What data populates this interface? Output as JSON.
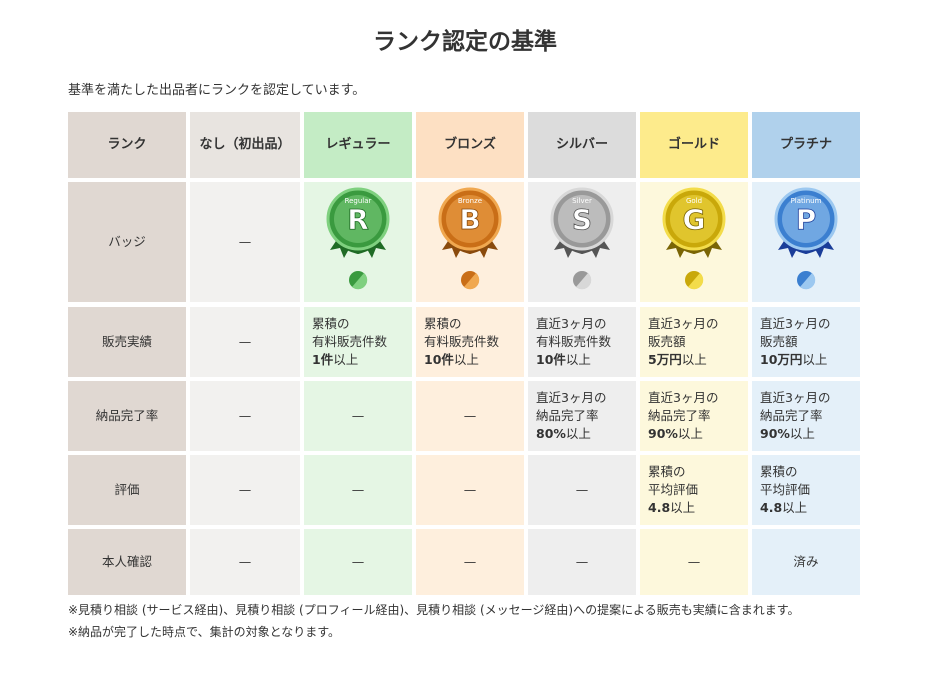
{
  "title": "ランク認定の基準",
  "intro": "基準を満たした出品者にランクを認定しています。",
  "table": {
    "header": [
      "ランク",
      "なし（初出品）",
      "レギュラー",
      "ブロンズ",
      "シルバー",
      "ゴールド",
      "プラチナ"
    ],
    "badge_row": {
      "label": "バッジ",
      "none": "—"
    },
    "badges": [
      {
        "letter": "R",
        "label": "Regular"
      },
      {
        "letter": "B",
        "label": "Bronze"
      },
      {
        "letter": "S",
        "label": "Silver"
      },
      {
        "letter": "G",
        "label": "Gold"
      },
      {
        "letter": "P",
        "label": "Platinum"
      }
    ],
    "rows": [
      {
        "label": "販売実績",
        "cells": [
          "—",
          {
            "lines": [
              "累積の",
              "有料販売件数"
            ],
            "emphasis": "1件",
            "suffix": "以上"
          },
          {
            "lines": [
              "累積の",
              "有料販売件数"
            ],
            "emphasis": "10件",
            "suffix": "以上"
          },
          {
            "lines": [
              "直近3ヶ月の",
              "有料販売件数"
            ],
            "emphasis": "10件",
            "suffix": "以上"
          },
          {
            "lines": [
              "直近3ヶ月の",
              "販売額"
            ],
            "emphasis": "5万円",
            "suffix": "以上"
          },
          {
            "lines": [
              "直近3ヶ月の",
              "販売額"
            ],
            "emphasis": "10万円",
            "suffix": "以上"
          }
        ]
      },
      {
        "label": "納品完了率",
        "cells": [
          "—",
          "—",
          "—",
          {
            "lines": [
              "直近3ヶ月の",
              "納品完了率"
            ],
            "emphasis": "80%",
            "suffix": "以上"
          },
          {
            "lines": [
              "直近3ヶ月の",
              "納品完了率"
            ],
            "emphasis": "90%",
            "suffix": "以上"
          },
          {
            "lines": [
              "直近3ヶ月の",
              "納品完了率"
            ],
            "emphasis": "90%",
            "suffix": "以上"
          }
        ]
      },
      {
        "label": "評価",
        "cells": [
          "—",
          "—",
          "—",
          "—",
          {
            "lines": [
              "累積の",
              "平均評価"
            ],
            "emphasis": "4.8",
            "suffix": "以上"
          },
          {
            "lines": [
              "累積の",
              "平均評価"
            ],
            "emphasis": "4.8",
            "suffix": "以上"
          }
        ]
      },
      {
        "label": "本人確認",
        "cells": [
          "—",
          "—",
          "—",
          "—",
          "—",
          "済み"
        ]
      }
    ]
  },
  "notes": [
    "※見積り相談 (サービス経由)、見積り相談 (プロフィール経由)、見積り相談 (メッセージ経由)への提案による販売も実績に含まれます。",
    "※納品が完了した時点で、集計の対象となります。"
  ]
}
